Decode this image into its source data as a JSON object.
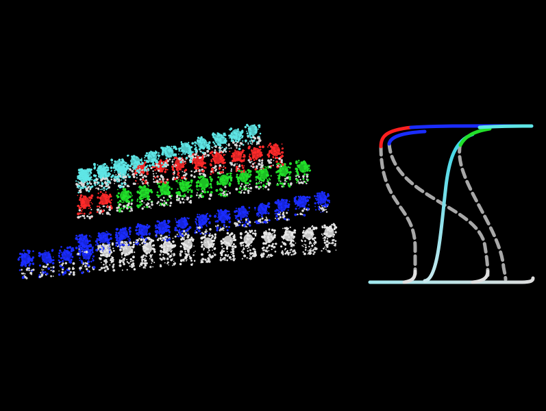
{
  "figure": {
    "background": "#000000",
    "scatter_panel": {
      "description_colors": {
        "white": "#e6e6e6",
        "blue": "#1a2cff",
        "green": "#22e02a",
        "red": "#ff2a2a",
        "cyan": "#5fe6e6"
      },
      "layers": [
        {
          "name": "bottom",
          "columns": 16,
          "color_pattern": [
            "blue",
            "blue",
            "blue",
            "blue",
            "white",
            "white",
            "white",
            "white",
            "white",
            "white",
            "white",
            "white",
            "white",
            "white",
            "white",
            "white"
          ]
        },
        {
          "name": "blue-row",
          "columns": 13,
          "color_pattern": [
            "blue",
            "blue",
            "blue",
            "blue",
            "blue",
            "blue",
            "blue",
            "blue",
            "blue",
            "blue",
            "blue",
            "blue",
            "blue"
          ]
        },
        {
          "name": "green-row",
          "columns": 12,
          "color_pattern": [
            "red",
            "red",
            "green",
            "green",
            "green",
            "green",
            "green",
            "green",
            "green",
            "green",
            "green",
            "green"
          ]
        },
        {
          "name": "red-row",
          "columns": 11,
          "color_pattern": [
            "cyan",
            "cyan",
            "cyan",
            "red",
            "red",
            "red",
            "red",
            "red",
            "red",
            "red",
            "red"
          ]
        },
        {
          "name": "cyan-row",
          "columns": 11,
          "color_pattern": [
            "cyan",
            "cyan",
            "cyan",
            "cyan",
            "cyan",
            "cyan",
            "cyan",
            "cyan",
            "cyan",
            "cyan",
            "cyan"
          ]
        }
      ]
    },
    "curve_panel": {
      "curves": [
        {
          "name": "red-curve",
          "color": "#ff2a2a",
          "style": "solid"
        },
        {
          "name": "blue-curve",
          "color": "#1a2cff",
          "style": "solid"
        },
        {
          "name": "green-curve",
          "color": "#22e02a",
          "style": "solid"
        },
        {
          "name": "cyan-curve",
          "color": "#5fe6e6",
          "style": "solid"
        },
        {
          "name": "white-base",
          "color": "#e6e6e6",
          "style": "solid"
        },
        {
          "name": "gray-dashed-1",
          "color": "#9a9a9a",
          "style": "dashed"
        },
        {
          "name": "gray-dashed-2",
          "color": "#9a9a9a",
          "style": "dashed"
        },
        {
          "name": "gray-dashed-3",
          "color": "#9a9a9a",
          "style": "dashed"
        }
      ]
    }
  }
}
